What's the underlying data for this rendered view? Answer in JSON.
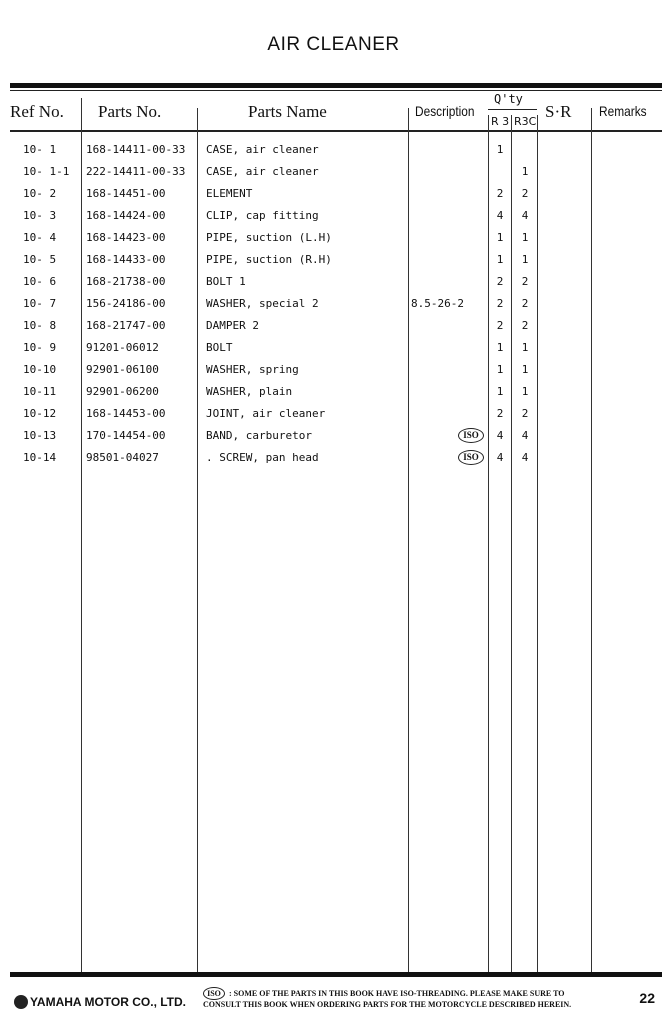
{
  "title": "AIR CLEANER",
  "headers": {
    "ref_no": "Ref No.",
    "parts_no": "Parts No.",
    "parts_name": "Parts Name",
    "description": "Description",
    "qty": "Q'ty",
    "qty_r3": "R 3",
    "qty_r3c": "R3C",
    "sr": "S·R",
    "remarks": "Remarks"
  },
  "rows": [
    {
      "ref": "10- 1",
      "part": "168-14411-00-33",
      "name": "CASE, air cleaner",
      "desc": "",
      "iso": false,
      "r3": "1",
      "r3c": ""
    },
    {
      "ref": "10- 1-1",
      "part": "222-14411-00-33",
      "name": "CASE, air cleaner",
      "desc": "",
      "iso": false,
      "r3": "",
      "r3c": "1"
    },
    {
      "ref": "10- 2",
      "part": "168-14451-00",
      "name": "ELEMENT",
      "desc": "",
      "iso": false,
      "r3": "2",
      "r3c": "2"
    },
    {
      "ref": "10- 3",
      "part": "168-14424-00",
      "name": "CLIP, cap fitting",
      "desc": "",
      "iso": false,
      "r3": "4",
      "r3c": "4"
    },
    {
      "ref": "10- 4",
      "part": "168-14423-00",
      "name": "PIPE, suction (L.H)",
      "desc": "",
      "iso": false,
      "r3": "1",
      "r3c": "1"
    },
    {
      "ref": "10- 5",
      "part": "168-14433-00",
      "name": "PIPE, suction (R.H)",
      "desc": "",
      "iso": false,
      "r3": "1",
      "r3c": "1"
    },
    {
      "ref": "10- 6",
      "part": "168-21738-00",
      "name": "BOLT 1",
      "desc": "",
      "iso": false,
      "r3": "2",
      "r3c": "2"
    },
    {
      "ref": "10- 7",
      "part": "156-24186-00",
      "name": "WASHER, special 2",
      "desc": "8.5-26-2",
      "iso": false,
      "r3": "2",
      "r3c": "2"
    },
    {
      "ref": "10- 8",
      "part": "168-21747-00",
      "name": "DAMPER 2",
      "desc": "",
      "iso": false,
      "r3": "2",
      "r3c": "2"
    },
    {
      "ref": "10- 9",
      "part": "91201-06012",
      "name": "BOLT",
      "desc": "",
      "iso": false,
      "r3": "1",
      "r3c": "1"
    },
    {
      "ref": "10-10",
      "part": "92901-06100",
      "name": "WASHER, spring",
      "desc": "",
      "iso": false,
      "r3": "1",
      "r3c": "1"
    },
    {
      "ref": "10-11",
      "part": "92901-06200",
      "name": "WASHER, plain",
      "desc": "",
      "iso": false,
      "r3": "1",
      "r3c": "1"
    },
    {
      "ref": "10-12",
      "part": "168-14453-00",
      "name": "JOINT, air cleaner",
      "desc": "",
      "iso": false,
      "r3": "2",
      "r3c": "2"
    },
    {
      "ref": "10-13",
      "part": "170-14454-00",
      "name": "BAND, carburetor",
      "desc": "",
      "iso": true,
      "r3": "4",
      "r3c": "4"
    },
    {
      "ref": "10-14",
      "part": "98501-04027",
      "name": ". SCREW, pan head",
      "desc": "",
      "iso": true,
      "r3": "4",
      "r3c": "4"
    }
  ],
  "iso_label": "ISO",
  "footer": {
    "company": "YAMAHA MOTOR CO., LTD.",
    "note_line1": ": SOME OF THE PARTS IN THIS BOOK HAVE ISO-THREADING.  PLEASE MAKE SURE TO",
    "note_line2": "CONSULT THIS BOOK WHEN ORDERING PARTS FOR THE MOTORCYCLE DESCRIBED HEREIN.",
    "page_number": "22"
  }
}
